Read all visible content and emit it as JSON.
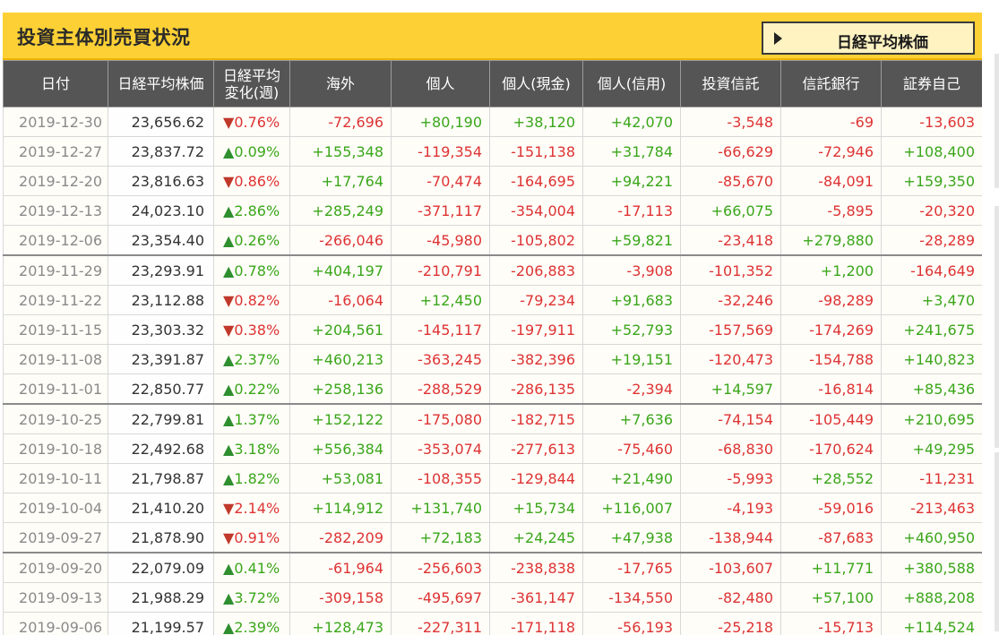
{
  "header": {
    "title": "投資主体別売買状況",
    "nikkei_button": "日経平均株価"
  },
  "columns": [
    "日付",
    "日経平均株価",
    "日経平均\n変化(週)",
    "海外",
    "個人",
    "個人(現金)",
    "個人(信用)",
    "投資信託",
    "信託銀行",
    "証券自己"
  ],
  "rows": [
    {
      "date": "2019-12-30",
      "price": "23,656.62",
      "dir": "down",
      "pct": "0.76%",
      "v": [
        "-72,696",
        "+80,190",
        "+38,120",
        "+42,070",
        "-3,548",
        "-69",
        "-13,603"
      ]
    },
    {
      "date": "2019-12-27",
      "price": "23,837.72",
      "dir": "up",
      "pct": "0.09%",
      "v": [
        "+155,348",
        "-119,354",
        "-151,138",
        "+31,784",
        "-66,629",
        "-72,946",
        "+108,400"
      ]
    },
    {
      "date": "2019-12-20",
      "price": "23,816.63",
      "dir": "down",
      "pct": "0.86%",
      "v": [
        "+17,764",
        "-70,474",
        "-164,695",
        "+94,221",
        "-85,670",
        "-84,091",
        "+159,350"
      ]
    },
    {
      "date": "2019-12-13",
      "price": "24,023.10",
      "dir": "up",
      "pct": "2.86%",
      "v": [
        "+285,249",
        "-371,117",
        "-354,004",
        "-17,113",
        "+66,075",
        "-5,895",
        "-20,320"
      ]
    },
    {
      "date": "2019-12-06",
      "price": "23,354.40",
      "dir": "up",
      "pct": "0.26%",
      "v": [
        "-266,046",
        "-45,980",
        "-105,802",
        "+59,821",
        "-23,418",
        "+279,880",
        "-28,289"
      ]
    },
    {
      "date": "2019-11-29",
      "price": "23,293.91",
      "dir": "up",
      "pct": "0.78%",
      "v": [
        "+404,197",
        "-210,791",
        "-206,883",
        "-3,908",
        "-101,352",
        "+1,200",
        "-164,649"
      ]
    },
    {
      "date": "2019-11-22",
      "price": "23,112.88",
      "dir": "down",
      "pct": "0.82%",
      "v": [
        "-16,064",
        "+12,450",
        "-79,234",
        "+91,683",
        "-32,246",
        "-98,289",
        "+3,470"
      ]
    },
    {
      "date": "2019-11-15",
      "price": "23,303.32",
      "dir": "down",
      "pct": "0.38%",
      "v": [
        "+204,561",
        "-145,117",
        "-197,911",
        "+52,793",
        "-157,569",
        "-174,269",
        "+241,675"
      ]
    },
    {
      "date": "2019-11-08",
      "price": "23,391.87",
      "dir": "up",
      "pct": "2.37%",
      "v": [
        "+460,213",
        "-363,245",
        "-382,396",
        "+19,151",
        "-120,473",
        "-154,788",
        "+140,823"
      ]
    },
    {
      "date": "2019-11-01",
      "price": "22,850.77",
      "dir": "up",
      "pct": "0.22%",
      "v": [
        "+258,136",
        "-288,529",
        "-286,135",
        "-2,394",
        "+14,597",
        "-16,814",
        "+85,436"
      ]
    },
    {
      "date": "2019-10-25",
      "price": "22,799.81",
      "dir": "up",
      "pct": "1.37%",
      "v": [
        "+152,122",
        "-175,080",
        "-182,715",
        "+7,636",
        "-74,154",
        "-105,449",
        "+210,695"
      ]
    },
    {
      "date": "2019-10-18",
      "price": "22,492.68",
      "dir": "up",
      "pct": "3.18%",
      "v": [
        "+556,384",
        "-353,074",
        "-277,613",
        "-75,460",
        "-68,830",
        "-170,624",
        "+49,295"
      ]
    },
    {
      "date": "2019-10-11",
      "price": "21,798.87",
      "dir": "up",
      "pct": "1.82%",
      "v": [
        "+53,081",
        "-108,355",
        "-129,844",
        "+21,490",
        "-5,993",
        "+28,552",
        "-11,231"
      ]
    },
    {
      "date": "2019-10-04",
      "price": "21,410.20",
      "dir": "down",
      "pct": "2.14%",
      "v": [
        "+114,912",
        "+131,740",
        "+15,734",
        "+116,007",
        "-4,193",
        "-59,016",
        "-213,463"
      ]
    },
    {
      "date": "2019-09-27",
      "price": "21,878.90",
      "dir": "down",
      "pct": "0.91%",
      "v": [
        "-282,209",
        "+72,183",
        "+24,245",
        "+47,938",
        "-138,944",
        "-87,683",
        "+460,950"
      ]
    },
    {
      "date": "2019-09-20",
      "price": "22,079.09",
      "dir": "up",
      "pct": "0.41%",
      "v": [
        "-61,964",
        "-256,603",
        "-238,838",
        "-17,765",
        "-103,607",
        "+11,771",
        "+380,588"
      ]
    },
    {
      "date": "2019-09-13",
      "price": "21,988.29",
      "dir": "up",
      "pct": "3.72%",
      "v": [
        "-309,158",
        "-495,697",
        "-361,147",
        "-134,550",
        "-82,480",
        "+57,100",
        "+888,208"
      ]
    },
    {
      "date": "2019-09-06",
      "price": "21,199.57",
      "dir": "up",
      "pct": "2.39%",
      "v": [
        "+128,473",
        "-227,311",
        "-171,118",
        "-56,193",
        "-25,218",
        "-15,713",
        "+114,524"
      ]
    }
  ],
  "colors": {
    "up": "#3aa61a",
    "down": "#dd3333",
    "header_bg": "#555555",
    "title_bg": "#fdd135"
  },
  "icons": {
    "up": "▲",
    "down": "▼",
    "button": "triangle-right-icon"
  }
}
